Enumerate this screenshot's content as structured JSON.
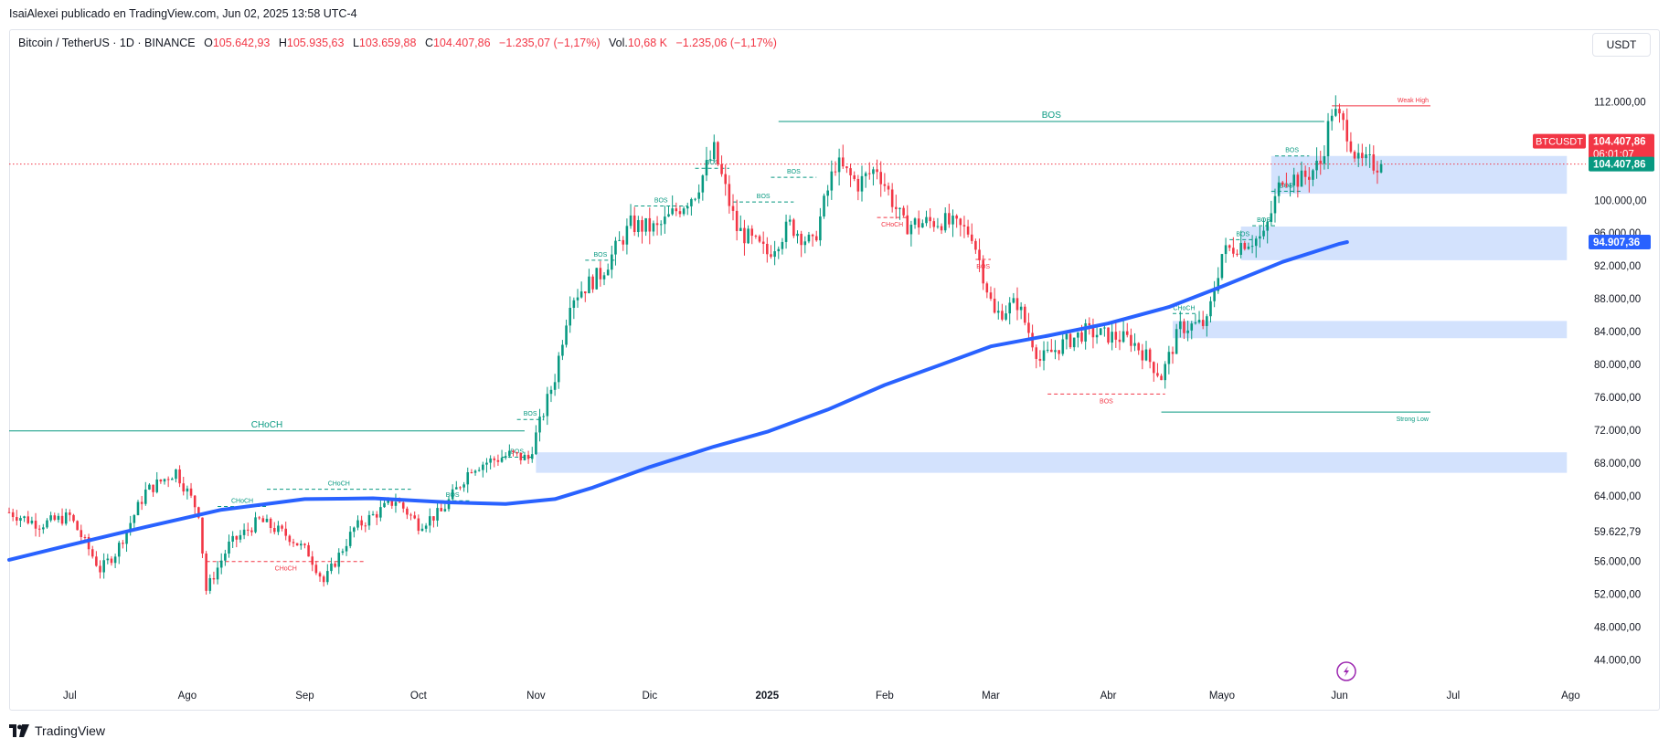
{
  "header": {
    "publisher": "IsaiAlexei publicado en TradingView.com, Jun 02, 2025 13:58 UTC-4",
    "symbol": "Bitcoin / TetherUS · 1D · BINANCE",
    "open_label": "O",
    "open": "105.642,93",
    "high_label": "H",
    "high": "105.935,63",
    "low_label": "L",
    "low": "103.659,88",
    "close_label": "C",
    "close": "104.407,86",
    "change": "−1.235,07 (−1,17%)",
    "vol_label": "Vol.",
    "vol": "10,68 K",
    "vol_change": "−1.235,06 (−1,17%)",
    "currency": "USDT"
  },
  "footer": {
    "brand": "TradingView"
  },
  "chart_data": {
    "type": "candlestick",
    "colors": {
      "up": "#089981",
      "down": "#f23645",
      "ma": "#2962ff",
      "zone": "#d1e0fd",
      "structure_up": "#089981",
      "structure_down": "#f23645"
    },
    "y_ticks": [
      "112.000,00",
      "100.000,00",
      "96.000,00",
      "92.000,00",
      "88.000,00",
      "84.000,00",
      "80.000,00",
      "76.000,00",
      "72.000,00",
      "68.000,00",
      "64.000,00",
      "59.622,79",
      "56.000,00",
      "52.000,00",
      "48.000,00",
      "44.000,00"
    ],
    "y_tick_values": [
      112000,
      100000,
      96000,
      92000,
      88000,
      84000,
      80000,
      76000,
      72000,
      68000,
      64000,
      59622.79,
      56000,
      52000,
      48000,
      44000
    ],
    "ylim": [
      41500,
      117500
    ],
    "x_ticks": [
      "Jul",
      "Ago",
      "Sep",
      "Oct",
      "Nov",
      "Dic",
      "2025",
      "Feb",
      "Mar",
      "Abr",
      "Mayo",
      "Jun",
      "Jul",
      "Ago"
    ],
    "x_tick_days": [
      0,
      31,
      62,
      92,
      123,
      153,
      184,
      215,
      243,
      274,
      304,
      335,
      365,
      396
    ],
    "xlim_days": [
      -16,
      400
    ],
    "price_labels": [
      {
        "symbol": "BTCUSDT",
        "value": "104.407,86",
        "countdown": "06:01:07",
        "price": 104407.86
      },
      {
        "value": "104.407,86",
        "price": 104407.86
      },
      {
        "value": "94.907,36",
        "price": 94907.36
      }
    ],
    "last_price": 104407.86,
    "ma_value": 94907.36,
    "ma_points": [
      {
        "d": -16,
        "p": 56200
      },
      {
        "d": 0,
        "p": 58000
      },
      {
        "d": 20,
        "p": 60200
      },
      {
        "d": 40,
        "p": 62300
      },
      {
        "d": 62,
        "p": 63600
      },
      {
        "d": 80,
        "p": 63700
      },
      {
        "d": 100,
        "p": 63200
      },
      {
        "d": 115,
        "p": 63000
      },
      {
        "d": 128,
        "p": 63600
      },
      {
        "d": 138,
        "p": 65000
      },
      {
        "d": 153,
        "p": 67500
      },
      {
        "d": 170,
        "p": 70000
      },
      {
        "d": 184,
        "p": 71800
      },
      {
        "d": 200,
        "p": 74500
      },
      {
        "d": 215,
        "p": 77500
      },
      {
        "d": 230,
        "p": 80000
      },
      {
        "d": 243,
        "p": 82200
      },
      {
        "d": 258,
        "p": 83500
      },
      {
        "d": 274,
        "p": 85000
      },
      {
        "d": 290,
        "p": 87000
      },
      {
        "d": 304,
        "p": 89500
      },
      {
        "d": 320,
        "p": 92500
      },
      {
        "d": 335,
        "p": 94700
      },
      {
        "d": 337,
        "p": 94907
      }
    ],
    "price_path": [
      {
        "d": -16,
        "p": 62000
      },
      {
        "d": -8,
        "p": 60500
      },
      {
        "d": 0,
        "p": 61500
      },
      {
        "d": 5,
        "p": 57500
      },
      {
        "d": 8,
        "p": 55000
      },
      {
        "d": 12,
        "p": 57000
      },
      {
        "d": 20,
        "p": 64500
      },
      {
        "d": 28,
        "p": 67000
      },
      {
        "d": 34,
        "p": 62000
      },
      {
        "d": 36,
        "p": 52500
      },
      {
        "d": 42,
        "p": 58000
      },
      {
        "d": 50,
        "p": 61000
      },
      {
        "d": 58,
        "p": 59000
      },
      {
        "d": 63,
        "p": 57000
      },
      {
        "d": 67,
        "p": 53500
      },
      {
        "d": 75,
        "p": 60000
      },
      {
        "d": 86,
        "p": 63500
      },
      {
        "d": 92,
        "p": 60500
      },
      {
        "d": 98,
        "p": 62000
      },
      {
        "d": 106,
        "p": 67500
      },
      {
        "d": 116,
        "p": 69000
      },
      {
        "d": 121,
        "p": 68500
      },
      {
        "d": 128,
        "p": 78500
      },
      {
        "d": 132,
        "p": 88000
      },
      {
        "d": 140,
        "p": 91000
      },
      {
        "d": 148,
        "p": 97000
      },
      {
        "d": 155,
        "p": 96500
      },
      {
        "d": 165,
        "p": 101000
      },
      {
        "d": 170,
        "p": 106000
      },
      {
        "d": 176,
        "p": 96500
      },
      {
        "d": 184,
        "p": 93500
      },
      {
        "d": 190,
        "p": 97000
      },
      {
        "d": 196,
        "p": 94500
      },
      {
        "d": 202,
        "p": 104500
      },
      {
        "d": 208,
        "p": 102000
      },
      {
        "d": 213,
        "p": 104000
      },
      {
        "d": 220,
        "p": 97000
      },
      {
        "d": 230,
        "p": 97500
      },
      {
        "d": 238,
        "p": 96000
      },
      {
        "d": 244,
        "p": 86000
      },
      {
        "d": 250,
        "p": 87500
      },
      {
        "d": 256,
        "p": 80500
      },
      {
        "d": 262,
        "p": 82500
      },
      {
        "d": 268,
        "p": 84000
      },
      {
        "d": 274,
        "p": 83500
      },
      {
        "d": 280,
        "p": 83000
      },
      {
        "d": 284,
        "p": 81000
      },
      {
        "d": 288,
        "p": 78500
      },
      {
        "d": 293,
        "p": 84500
      },
      {
        "d": 300,
        "p": 85000
      },
      {
        "d": 304,
        "p": 93500
      },
      {
        "d": 310,
        "p": 95000
      },
      {
        "d": 315,
        "p": 95500
      },
      {
        "d": 320,
        "p": 103000
      },
      {
        "d": 325,
        "p": 102500
      },
      {
        "d": 330,
        "p": 104500
      },
      {
        "d": 333,
        "p": 111000
      },
      {
        "d": 337,
        "p": 108500
      },
      {
        "d": 340,
        "p": 104500
      },
      {
        "d": 346,
        "p": 104400
      }
    ],
    "zones": [
      {
        "d1": 123,
        "d2": 395,
        "top": 69300,
        "bottom": 66800
      },
      {
        "d1": 291,
        "d2": 395,
        "top": 85300,
        "bottom": 83200
      },
      {
        "d1": 309,
        "d2": 395,
        "top": 96800,
        "bottom": 92700
      },
      {
        "d1": 317,
        "d2": 395,
        "top": 105400,
        "bottom": 100800
      }
    ],
    "structure": [
      {
        "d1": -16,
        "d2": 120,
        "price": 71900,
        "style": "solid",
        "color": "up",
        "label": "CHoCH",
        "label_size": 10
      },
      {
        "d1": 187,
        "d2": 331,
        "price": 109600,
        "style": "solid",
        "color": "up",
        "label": "BOS",
        "label_size": 10
      },
      {
        "d1": 333,
        "d2": 359,
        "price": 111500,
        "style": "solid",
        "color": "down",
        "label": "Weak High",
        "label_size": 7,
        "label_at": "end"
      },
      {
        "d1": 288,
        "d2": 359,
        "price": 74200,
        "style": "solid",
        "color": "up",
        "label": "Strong Low",
        "label_size": 7,
        "label_at": "end",
        "label_below": true
      },
      {
        "d1": 258,
        "d2": 289,
        "price": 76400,
        "style": "dashed",
        "color": "down",
        "label": "BOS",
        "label_size": 7,
        "label_below": true
      },
      {
        "d1": 36,
        "d2": 78,
        "price": 56000,
        "style": "dashed",
        "color": "down",
        "label": "CHoCH",
        "label_size": 7,
        "label_below": true
      },
      {
        "d1": 52,
        "d2": 90,
        "price": 64800,
        "style": "dashed",
        "color": "up",
        "label": "CHoCH",
        "label_size": 7
      },
      {
        "d1": 39,
        "d2": 52,
        "price": 62700,
        "style": "dashed",
        "color": "up",
        "label": "CHoCH",
        "label_size": 7
      },
      {
        "d1": 96,
        "d2": 106,
        "price": 63400,
        "style": "dashed",
        "color": "up",
        "label": "BOS",
        "label_size": 7
      },
      {
        "d1": 114,
        "d2": 122,
        "price": 68700,
        "style": "dashed",
        "color": "up",
        "label": "BOS",
        "label_size": 7
      },
      {
        "d1": 118,
        "d2": 125,
        "price": 73300,
        "style": "dashed",
        "color": "up",
        "label": "BOS",
        "label_size": 7
      },
      {
        "d1": 136,
        "d2": 144,
        "price": 92700,
        "style": "dashed",
        "color": "up",
        "label": "BOS",
        "label_size": 7
      },
      {
        "d1": 149,
        "d2": 163,
        "price": 99300,
        "style": "dashed",
        "color": "up",
        "label": "BOS",
        "label_size": 7
      },
      {
        "d1": 165,
        "d2": 174,
        "price": 103900,
        "style": "dashed",
        "color": "up",
        "label": "BOS",
        "label_size": 7
      },
      {
        "d1": 175,
        "d2": 191,
        "price": 99800,
        "style": "dashed",
        "color": "up",
        "label": "BOS",
        "label_size": 7
      },
      {
        "d1": 185,
        "d2": 197,
        "price": 102800,
        "style": "dashed",
        "color": "up",
        "label": "BOS",
        "label_size": 7
      },
      {
        "d1": 213,
        "d2": 221,
        "price": 97900,
        "style": "dashed",
        "color": "down",
        "label": "CHoCH",
        "label_size": 7,
        "label_below": true
      },
      {
        "d1": 239,
        "d2": 243,
        "price": 92800,
        "style": "dashed",
        "color": "down",
        "label": "BOS",
        "label_size": 7,
        "label_below": true
      },
      {
        "d1": 306,
        "d2": 313,
        "price": 95200,
        "style": "dashed",
        "color": "up",
        "label": "BOS",
        "label_size": 7
      },
      {
        "d1": 312,
        "d2": 318,
        "price": 96900,
        "style": "dashed",
        "color": "up",
        "label": "BOS",
        "label_size": 7
      },
      {
        "d1": 317,
        "d2": 325,
        "price": 101100,
        "style": "dashed",
        "color": "up",
        "label": "BOS",
        "label_size": 7
      },
      {
        "d1": 318,
        "d2": 327,
        "price": 105400,
        "style": "dashed",
        "color": "up",
        "label": "BOS",
        "label_size": 7
      },
      {
        "d1": 291,
        "d2": 297,
        "price": 86200,
        "style": "dashed",
        "color": "up",
        "label": "CHoCH",
        "label_size": 7
      }
    ]
  }
}
